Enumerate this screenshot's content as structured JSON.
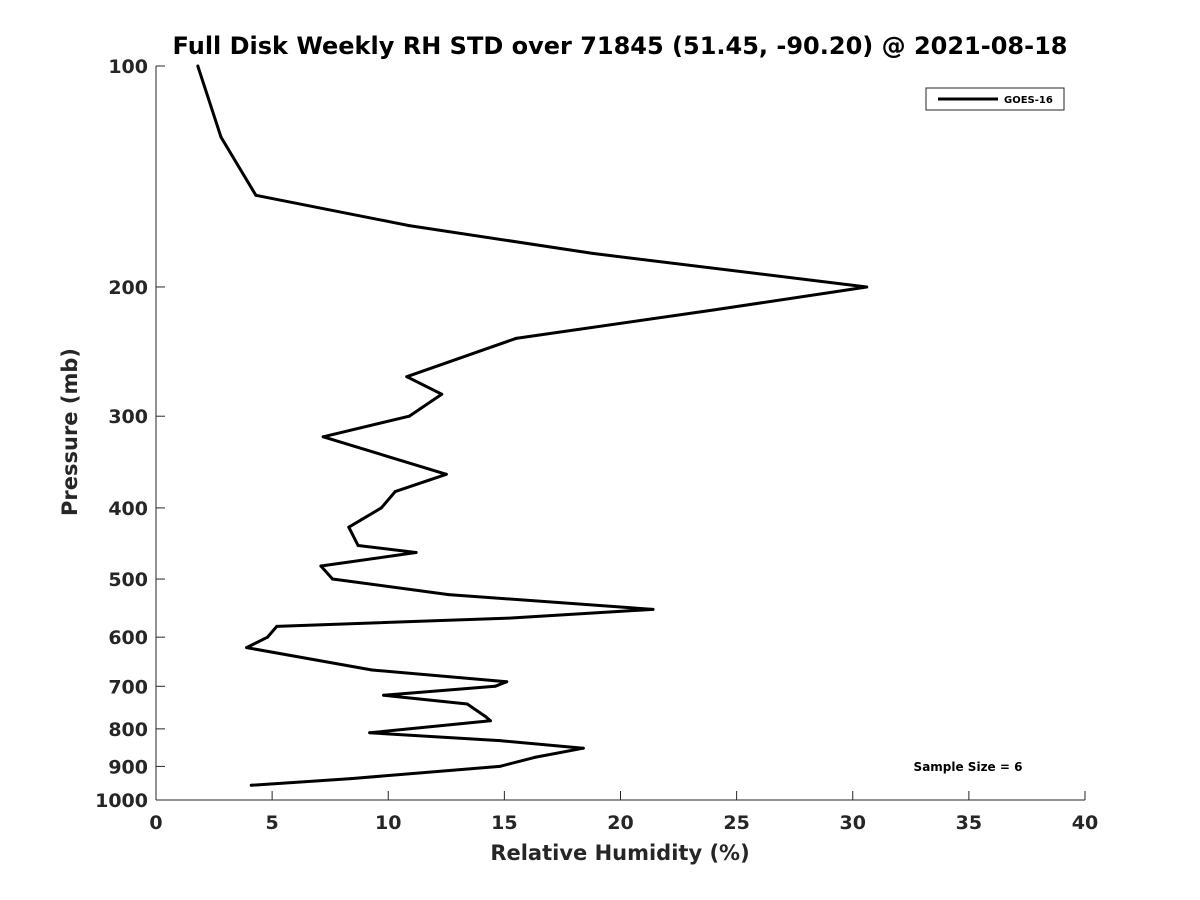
{
  "chart_data": {
    "type": "line",
    "title": "Full Disk Weekly RH STD over 71845 (51.45, -90.20) @ 2021-08-18",
    "xlabel": "Relative Humidity (%)",
    "ylabel": "Pressure (mb)",
    "xlim": [
      0,
      40
    ],
    "ylim": [
      100,
      1000
    ],
    "y_scale": "log",
    "y_reversed": true,
    "grid": false,
    "legend_position": "top-right",
    "x_ticks": [
      "0",
      "5",
      "10",
      "15",
      "20",
      "25",
      "30",
      "35",
      "40"
    ],
    "y_ticks": [
      "100",
      "200",
      "300",
      "400",
      "500",
      "600",
      "700",
      "800",
      "900",
      "1000"
    ],
    "annotation": "Sample Size = 6",
    "series": [
      {
        "name": "GOES-16",
        "color": "#000000",
        "points": [
          {
            "x": 1.8,
            "y": 100
          },
          {
            "x": 2.8,
            "y": 125
          },
          {
            "x": 4.3,
            "y": 150
          },
          {
            "x": 10.9,
            "y": 165
          },
          {
            "x": 18.8,
            "y": 180
          },
          {
            "x": 30.6,
            "y": 200
          },
          {
            "x": 24.0,
            "y": 215
          },
          {
            "x": 15.5,
            "y": 235
          },
          {
            "x": 10.8,
            "y": 265
          },
          {
            "x": 12.3,
            "y": 280
          },
          {
            "x": 10.9,
            "y": 300
          },
          {
            "x": 7.2,
            "y": 320
          },
          {
            "x": 12.5,
            "y": 360
          },
          {
            "x": 10.3,
            "y": 380
          },
          {
            "x": 9.7,
            "y": 400
          },
          {
            "x": 8.3,
            "y": 425
          },
          {
            "x": 8.7,
            "y": 450
          },
          {
            "x": 11.2,
            "y": 460
          },
          {
            "x": 7.1,
            "y": 480
          },
          {
            "x": 7.6,
            "y": 500
          },
          {
            "x": 12.6,
            "y": 525
          },
          {
            "x": 21.4,
            "y": 550
          },
          {
            "x": 15.3,
            "y": 565
          },
          {
            "x": 5.2,
            "y": 580
          },
          {
            "x": 4.8,
            "y": 600
          },
          {
            "x": 3.9,
            "y": 620
          },
          {
            "x": 9.3,
            "y": 665
          },
          {
            "x": 15.1,
            "y": 690
          },
          {
            "x": 14.6,
            "y": 700
          },
          {
            "x": 9.8,
            "y": 720
          },
          {
            "x": 13.4,
            "y": 740
          },
          {
            "x": 14.2,
            "y": 770
          },
          {
            "x": 14.4,
            "y": 780
          },
          {
            "x": 9.2,
            "y": 810
          },
          {
            "x": 14.8,
            "y": 830
          },
          {
            "x": 18.4,
            "y": 850
          },
          {
            "x": 16.3,
            "y": 875
          },
          {
            "x": 14.8,
            "y": 900
          },
          {
            "x": 8.4,
            "y": 935
          },
          {
            "x": 4.1,
            "y": 955
          }
        ]
      }
    ]
  }
}
